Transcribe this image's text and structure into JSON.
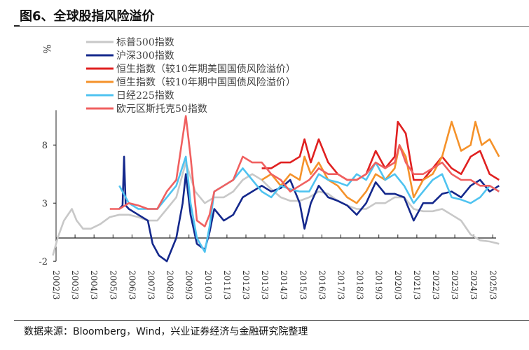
{
  "title": "图6、全球股指风险溢价",
  "source": "数据来源：Bloomberg，Wind，兴业证券经济与金融研究院整理",
  "chart_data": {
    "type": "line",
    "ylabel": "%",
    "ylim": [
      -2,
      11
    ],
    "yticks": [
      -2,
      3,
      8
    ],
    "xticks": [
      "2002/3",
      "2003/3",
      "2004/3",
      "2005/3",
      "2006/3",
      "2007/3",
      "2008/3",
      "2009/3",
      "2010/3",
      "2011/3",
      "2012/3",
      "2013/3",
      "2014/3",
      "2015/3",
      "2016/3",
      "2017/3",
      "2018/3",
      "2019/3",
      "2020/3",
      "2021/3",
      "2022/3",
      "2023/3",
      "2024/3",
      "2025/3"
    ],
    "grid": false,
    "legend": "top-left",
    "series": [
      {
        "name": "标普500指数",
        "color": "#c8c8c8",
        "points": [
          [
            "2002/01",
            -1.5
          ],
          [
            "2002/04",
            0
          ],
          [
            "2002/08",
            1.5
          ],
          [
            "2003/01",
            2.5
          ],
          [
            "2003/04",
            1.5
          ],
          [
            "2003/08",
            0.8
          ],
          [
            "2004/01",
            0.8
          ],
          [
            "2004/07",
            1.2
          ],
          [
            "2005/01",
            1.8
          ],
          [
            "2005/07",
            2.0
          ],
          [
            "2006/01",
            2.0
          ],
          [
            "2006/07",
            1.8
          ],
          [
            "2007/01",
            1.5
          ],
          [
            "2007/07",
            1.5
          ],
          [
            "2008/01",
            2.5
          ],
          [
            "2008/07",
            3.5
          ],
          [
            "2009/01",
            6.5
          ],
          [
            "2009/07",
            4
          ],
          [
            "2010/01",
            3
          ],
          [
            "2010/07",
            3.5
          ],
          [
            "2011/01",
            3.5
          ],
          [
            "2011/07",
            4
          ],
          [
            "2012/01",
            5
          ],
          [
            "2012/07",
            5.5
          ],
          [
            "2013/01",
            5
          ],
          [
            "2013/07",
            4.2
          ],
          [
            "2014/01",
            3.5
          ],
          [
            "2014/07",
            3.2
          ],
          [
            "2015/01",
            3.2
          ],
          [
            "2015/07",
            3.5
          ],
          [
            "2016/01",
            4
          ],
          [
            "2016/07",
            3.8
          ],
          [
            "2017/01",
            3.2
          ],
          [
            "2017/07",
            2.8
          ],
          [
            "2018/01",
            2.5
          ],
          [
            "2018/07",
            2.5
          ],
          [
            "2019/01",
            3
          ],
          [
            "2019/07",
            3
          ],
          [
            "2020/01",
            3.5
          ],
          [
            "2020/07",
            3.5
          ],
          [
            "2021/01",
            2.5
          ],
          [
            "2021/07",
            2.3
          ],
          [
            "2022/01",
            2.3
          ],
          [
            "2022/07",
            2.5
          ],
          [
            "2023/01",
            2
          ],
          [
            "2023/07",
            1.5
          ],
          [
            "2024/01",
            0.3
          ],
          [
            "2024/07",
            -0.2
          ],
          [
            "2025/01",
            -0.3
          ],
          [
            "2025/07",
            -0.5
          ]
        ]
      },
      {
        "name": "沪深300指数",
        "color": "#14288c",
        "points": [
          [
            "2005/07",
            2.5
          ],
          [
            "2005/09",
            2.8
          ],
          [
            "2005/10",
            7
          ],
          [
            "2005/11",
            2.8
          ],
          [
            "2006/01",
            2.5
          ],
          [
            "2006/07",
            2.0
          ],
          [
            "2007/01",
            1.5
          ],
          [
            "2007/04",
            -0.5
          ],
          [
            "2007/08",
            -1.5
          ],
          [
            "2008/01",
            -2
          ],
          [
            "2008/07",
            0
          ],
          [
            "2008/11",
            3
          ],
          [
            "2009/01",
            5.5
          ],
          [
            "2009/04",
            2
          ],
          [
            "2009/08",
            -0.5
          ],
          [
            "2010/01",
            -1
          ],
          [
            "2010/04",
            0.5
          ],
          [
            "2010/07",
            2.5
          ],
          [
            "2011/01",
            1.5
          ],
          [
            "2011/07",
            2
          ],
          [
            "2012/01",
            3.5
          ],
          [
            "2012/07",
            4
          ],
          [
            "2013/01",
            4.5
          ],
          [
            "2013/07",
            4
          ],
          [
            "2014/01",
            4.3
          ],
          [
            "2014/07",
            5
          ],
          [
            "2015/01",
            3
          ],
          [
            "2015/04",
            0.8
          ],
          [
            "2015/08",
            3
          ],
          [
            "2016/01",
            4.5
          ],
          [
            "2016/07",
            3.5
          ],
          [
            "2017/01",
            3.2
          ],
          [
            "2017/07",
            2.8
          ],
          [
            "2018/01",
            2
          ],
          [
            "2018/07",
            3
          ],
          [
            "2019/01",
            4.8
          ],
          [
            "2019/07",
            3.8
          ],
          [
            "2020/01",
            3.8
          ],
          [
            "2020/07",
            3.5
          ],
          [
            "2021/01",
            1.5
          ],
          [
            "2021/07",
            3
          ],
          [
            "2022/01",
            3
          ],
          [
            "2022/07",
            3.8
          ],
          [
            "2023/01",
            4
          ],
          [
            "2023/07",
            3.5
          ],
          [
            "2024/01",
            4.5
          ],
          [
            "2024/07",
            5
          ],
          [
            "2025/01",
            4
          ],
          [
            "2025/07",
            4.5
          ]
        ]
      },
      {
        "name": "恒生指数（较10年期美国国债风险溢价）",
        "color": "#e02020",
        "points": [
          [
            "2013/01",
            6
          ],
          [
            "2013/07",
            6
          ],
          [
            "2014/01",
            6.5
          ],
          [
            "2014/07",
            6.5
          ],
          [
            "2015/01",
            7
          ],
          [
            "2015/04",
            8.5
          ],
          [
            "2015/08",
            6.5
          ],
          [
            "2016/01",
            8.5
          ],
          [
            "2016/07",
            6.5
          ],
          [
            "2017/01",
            5.5
          ],
          [
            "2017/07",
            5
          ],
          [
            "2018/01",
            5
          ],
          [
            "2018/07",
            5.5
          ],
          [
            "2019/01",
            7.5
          ],
          [
            "2019/07",
            6
          ],
          [
            "2020/01",
            7
          ],
          [
            "2020/03",
            10
          ],
          [
            "2020/08",
            9
          ],
          [
            "2021/01",
            5
          ],
          [
            "2021/07",
            5
          ],
          [
            "2022/01",
            6
          ],
          [
            "2022/07",
            7
          ],
          [
            "2023/01",
            6
          ],
          [
            "2023/07",
            5.5
          ],
          [
            "2024/01",
            7
          ],
          [
            "2024/07",
            7.5
          ],
          [
            "2025/01",
            5.5
          ],
          [
            "2025/07",
            5
          ]
        ]
      },
      {
        "name": "恒生指数（较10年期中国国债风险溢价）",
        "color": "#f5922a",
        "points": [
          [
            "2013/01",
            5
          ],
          [
            "2013/07",
            5.5
          ],
          [
            "2014/01",
            4.5
          ],
          [
            "2014/07",
            5.5
          ],
          [
            "2015/01",
            5
          ],
          [
            "2015/04",
            7
          ],
          [
            "2015/08",
            5.5
          ],
          [
            "2016/01",
            6.5
          ],
          [
            "2016/07",
            5
          ],
          [
            "2017/01",
            4.5
          ],
          [
            "2017/07",
            3.5
          ],
          [
            "2018/01",
            3
          ],
          [
            "2018/07",
            4
          ],
          [
            "2019/01",
            5.5
          ],
          [
            "2019/07",
            5
          ],
          [
            "2020/01",
            6
          ],
          [
            "2020/04",
            8
          ],
          [
            "2020/08",
            7
          ],
          [
            "2021/01",
            3.5
          ],
          [
            "2021/07",
            5
          ],
          [
            "2022/01",
            5.5
          ],
          [
            "2022/07",
            7
          ],
          [
            "2023/01",
            10
          ],
          [
            "2023/07",
            7.5
          ],
          [
            "2024/01",
            8
          ],
          [
            "2024/04",
            10
          ],
          [
            "2024/08",
            8
          ],
          [
            "2025/01",
            8.5
          ],
          [
            "2025/07",
            7
          ]
        ]
      },
      {
        "name": "日经225指数",
        "color": "#4fc3f0",
        "points": [
          [
            "2005/07",
            4.5
          ],
          [
            "2006/01",
            3
          ],
          [
            "2006/07",
            2.5
          ],
          [
            "2007/01",
            2.5
          ],
          [
            "2007/07",
            2.5
          ],
          [
            "2008/01",
            3.5
          ],
          [
            "2008/07",
            4.5
          ],
          [
            "2009/01",
            7
          ],
          [
            "2009/04",
            3
          ],
          [
            "2009/08",
            0
          ],
          [
            "2010/01",
            -1.2
          ],
          [
            "2010/04",
            1
          ],
          [
            "2010/07",
            4
          ],
          [
            "2011/01",
            4.5
          ],
          [
            "2011/07",
            5
          ],
          [
            "2012/01",
            6
          ],
          [
            "2012/07",
            5
          ],
          [
            "2013/01",
            4
          ],
          [
            "2013/07",
            3.5
          ],
          [
            "2014/01",
            4.5
          ],
          [
            "2014/07",
            4.2
          ],
          [
            "2015/01",
            4
          ],
          [
            "2015/07",
            4
          ],
          [
            "2016/01",
            5.5
          ],
          [
            "2016/07",
            5
          ],
          [
            "2017/01",
            4.8
          ],
          [
            "2017/07",
            4.5
          ],
          [
            "2018/01",
            5.5
          ],
          [
            "2018/07",
            5
          ],
          [
            "2019/01",
            6.5
          ],
          [
            "2019/07",
            5
          ],
          [
            "2020/01",
            5.5
          ],
          [
            "2020/07",
            4.5
          ],
          [
            "2021/01",
            3
          ],
          [
            "2021/07",
            4
          ],
          [
            "2022/01",
            5
          ],
          [
            "2022/07",
            5.5
          ],
          [
            "2023/01",
            3.5
          ],
          [
            "2023/07",
            3.3
          ],
          [
            "2024/01",
            3
          ],
          [
            "2024/07",
            3.5
          ],
          [
            "2025/01",
            4.5
          ],
          [
            "2025/07",
            4
          ]
        ]
      },
      {
        "name": "欧元区斯托克50指数",
        "color": "#f06060",
        "points": [
          [
            "2005/01",
            2.5
          ],
          [
            "2005/07",
            2.5
          ],
          [
            "2006/01",
            3
          ],
          [
            "2006/07",
            2.8
          ],
          [
            "2007/01",
            2.5
          ],
          [
            "2007/07",
            2.5
          ],
          [
            "2008/01",
            4
          ],
          [
            "2008/07",
            5
          ],
          [
            "2009/01",
            10.5
          ],
          [
            "2009/04",
            7
          ],
          [
            "2009/08",
            1.5
          ],
          [
            "2010/01",
            1
          ],
          [
            "2010/04",
            2
          ],
          [
            "2010/07",
            4
          ],
          [
            "2011/01",
            4.5
          ],
          [
            "2011/07",
            5
          ],
          [
            "2012/01",
            7
          ],
          [
            "2012/07",
            6.5
          ],
          [
            "2013/01",
            6.5
          ],
          [
            "2013/07",
            5.5
          ],
          [
            "2014/01",
            5
          ],
          [
            "2014/07",
            4
          ],
          [
            "2015/01",
            4.5
          ],
          [
            "2015/07",
            5
          ],
          [
            "2016/01",
            6
          ],
          [
            "2016/07",
            5.5
          ],
          [
            "2017/01",
            5.5
          ],
          [
            "2017/07",
            5
          ],
          [
            "2018/01",
            5
          ],
          [
            "2018/07",
            5.5
          ],
          [
            "2019/01",
            6.5
          ],
          [
            "2019/07",
            6
          ],
          [
            "2020/01",
            6.5
          ],
          [
            "2020/04",
            8
          ],
          [
            "2020/08",
            6.5
          ],
          [
            "2021/01",
            5.5
          ],
          [
            "2021/07",
            5.5
          ],
          [
            "2022/01",
            6
          ],
          [
            "2022/07",
            6.5
          ],
          [
            "2023/01",
            5.5
          ],
          [
            "2023/07",
            5
          ],
          [
            "2024/01",
            5
          ],
          [
            "2024/07",
            4.5
          ],
          [
            "2025/01",
            4.5
          ],
          [
            "2025/07",
            4
          ]
        ]
      }
    ]
  }
}
